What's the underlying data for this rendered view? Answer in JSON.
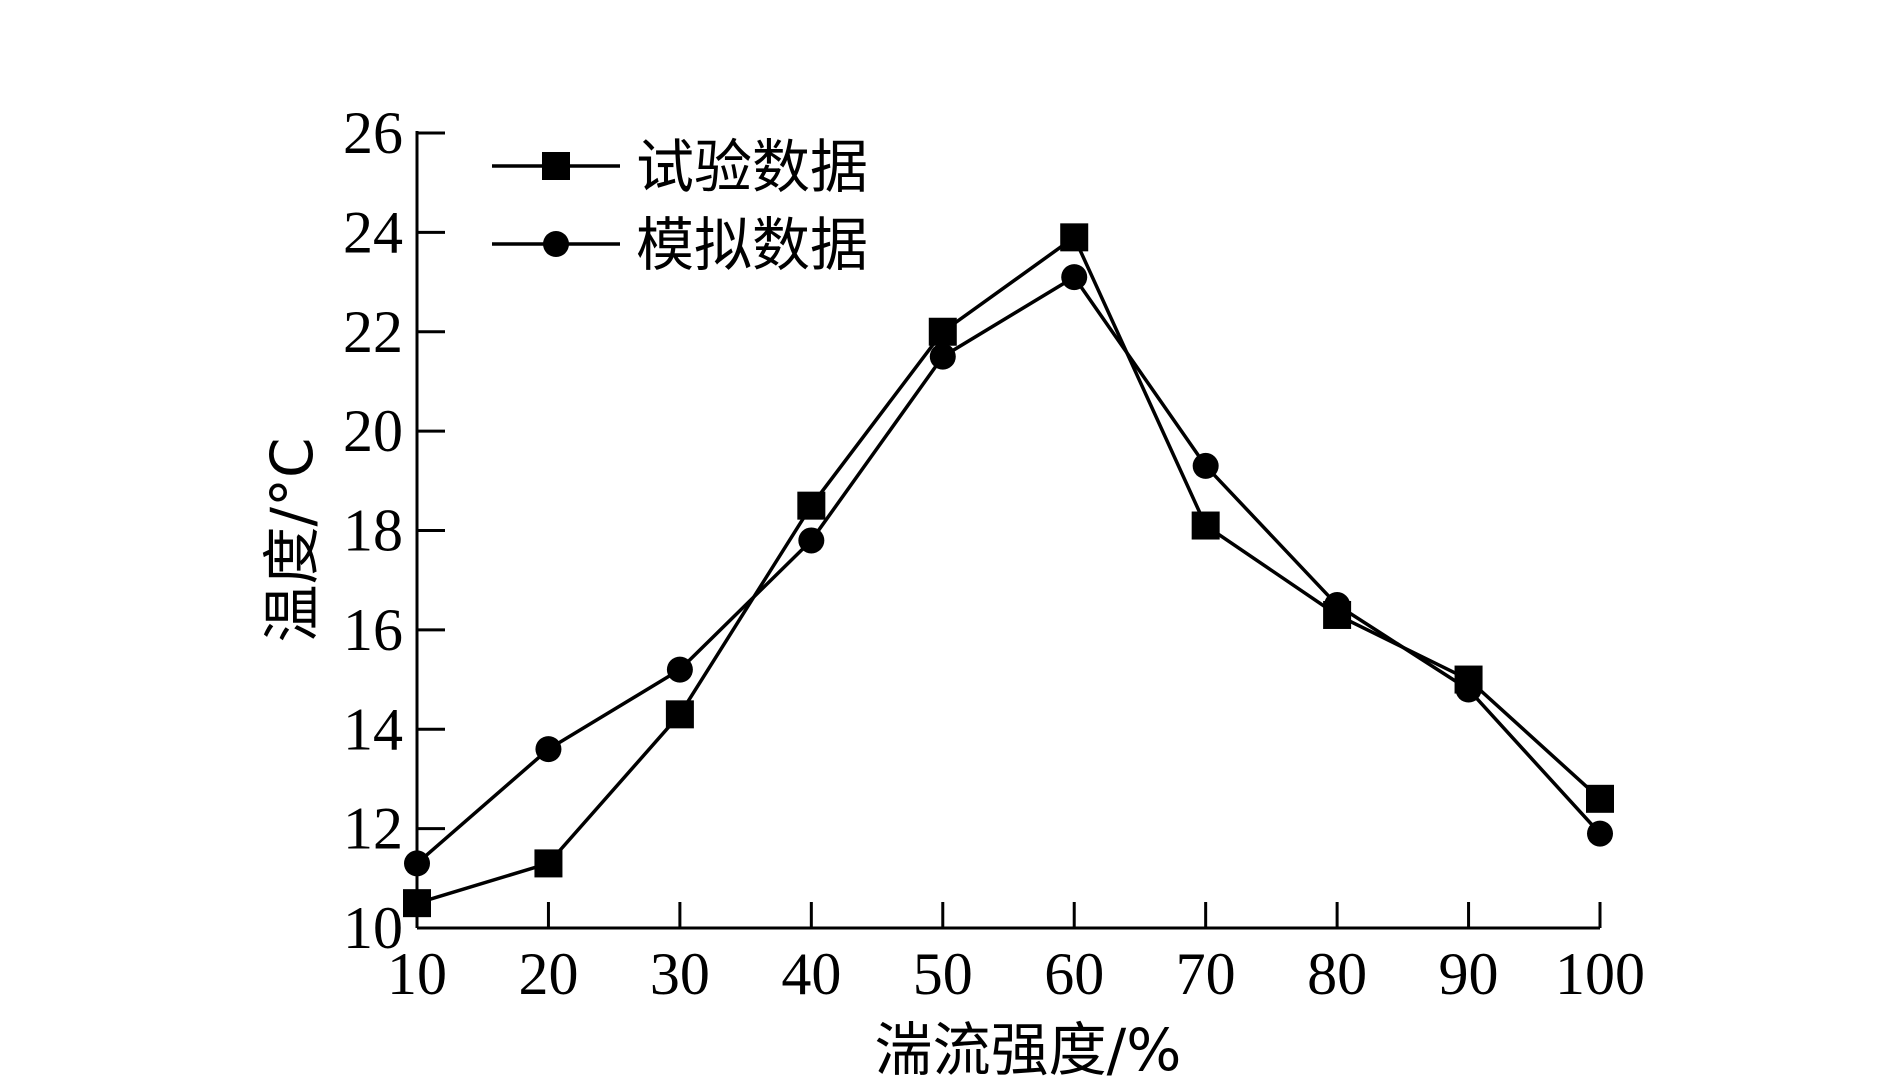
{
  "chart_data": {
    "type": "line",
    "x": [
      10,
      20,
      30,
      40,
      50,
      60,
      70,
      80,
      90,
      100
    ],
    "series": [
      {
        "name": "试验数据",
        "marker": "square",
        "values": [
          10.5,
          11.3,
          14.3,
          18.5,
          22.0,
          23.9,
          18.1,
          16.3,
          15.0,
          12.6
        ]
      },
      {
        "name": "模拟数据",
        "marker": "circle",
        "values": [
          11.3,
          13.6,
          15.2,
          17.8,
          21.5,
          23.1,
          19.3,
          16.5,
          14.8,
          11.9
        ]
      }
    ],
    "xlabel": "湍流强度/%",
    "ylabel": "温度/°C",
    "xlim": [
      10,
      100
    ],
    "ylim": [
      10,
      26
    ],
    "xticks": [
      "10",
      "20",
      "30",
      "40",
      "50",
      "60",
      "70",
      "80",
      "90",
      "100"
    ],
    "yticks": [
      "10",
      "12",
      "14",
      "16",
      "18",
      "20",
      "22",
      "24",
      "26"
    ],
    "grid": false,
    "legend_position": "top-left",
    "colors": {
      "line": "#000000",
      "marker": "#000000"
    }
  }
}
